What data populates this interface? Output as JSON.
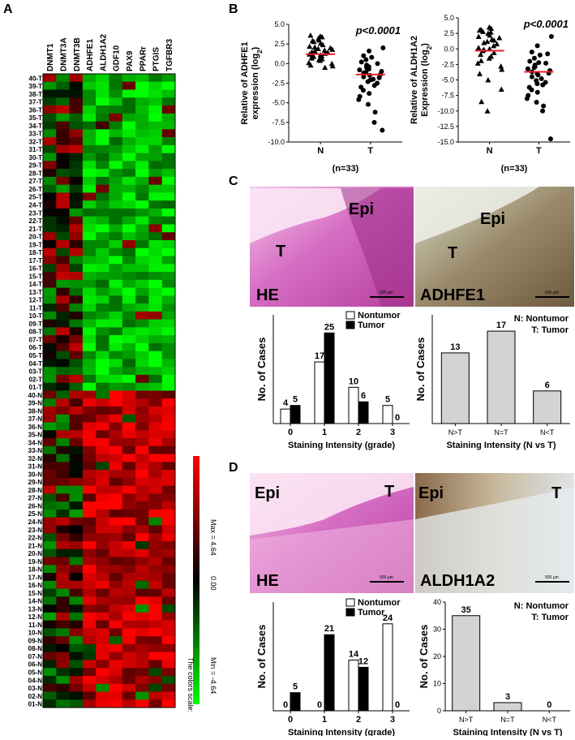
{
  "panels": {
    "A": "A",
    "B": "B",
    "C": "C",
    "D": "D"
  },
  "heatmap": {
    "columns": [
      "DNMT1",
      "DNMT3A",
      "DNMT3B",
      "ADHFE1",
      "ALDH1A2",
      "GDF10",
      "PAX9",
      "PPARr",
      "PTGIS",
      "TGFBR3"
    ],
    "rows": [
      "40-T",
      "39-T",
      "38-T",
      "37-T",
      "36-T",
      "35-T",
      "34-T",
      "33-T",
      "32-T",
      "31-T",
      "30-T",
      "29-T",
      "28-T",
      "27-T",
      "26-T",
      "25-T",
      "24-T",
      "23-T",
      "22-T",
      "21-T",
      "20-T",
      "19-T",
      "18-T",
      "17-T",
      "16-T",
      "15-T",
      "14-T",
      "13-T",
      "12-T",
      "11-T",
      "10-T",
      "09-T",
      "08-T",
      "07-T",
      "06-T",
      "05-T",
      "04-T",
      "03-T",
      "02-T",
      "01-T",
      "40-N",
      "39-N",
      "38-N",
      "37-N",
      "36-N",
      "35-N",
      "34-N",
      "33-N",
      "32-N",
      "31-N",
      "30-N",
      "29-N",
      "28-N",
      "27-N",
      "26-N",
      "25-N",
      "24-N",
      "23-N",
      "22-N",
      "21-N",
      "20-N",
      "19-N",
      "18-N",
      "17-N",
      "16-N",
      "15-N",
      "14-N",
      "13-N",
      "12-N",
      "11-N",
      "10-N",
      "09-N",
      "08-N",
      "07-N",
      "06-N",
      "05-N",
      "04-N",
      "03-N",
      "02-N",
      "01-N"
    ],
    "scale": {
      "max_label": "Max = 4.64",
      "mid_label": "0.00",
      "min_label": "Min = -4.64",
      "caption": "The colors scale:",
      "max": 4.64,
      "min": -4.64
    }
  },
  "colors": {
    "high": "#ff0000",
    "mid": "#000000",
    "low": "#00ff00",
    "median": "#e8202a",
    "bar_light": "#d3d3d3"
  },
  "chart_data": [
    {
      "id": "B-ADHFE1",
      "type": "scatter",
      "ylabel_line1": "Relative of ADHFE1",
      "ylabel_line2": "expression (log",
      "ylabel_sub": "2",
      "ylabel_end": ")",
      "categories": [
        "N",
        "T"
      ],
      "ylim": [
        -10.0,
        5.0
      ],
      "yticks": [
        "5.0",
        "2.5",
        "0.0",
        "-2.5",
        "-5.0",
        "-7.5",
        "-10.0"
      ],
      "pvalue": "p<0.0001",
      "n_label": "(n=33)",
      "median": {
        "N": 1.2,
        "T": -1.4
      },
      "N": [
        3.5,
        3.4,
        3.6,
        2.8,
        3.0,
        2.6,
        2.2,
        2.0,
        2.4,
        1.9,
        1.6,
        1.4,
        1.7,
        1.2,
        1.1,
        0.9,
        1.3,
        0.7,
        0.6,
        0.4,
        0.9,
        0.1,
        0.0,
        -0.3,
        -0.2,
        0.5,
        1.8,
        2.9,
        3.2,
        1.0,
        -0.5,
        2.1,
        1.5
      ],
      "T": [
        2.0,
        1.6,
        1.0,
        0.8,
        0.5,
        0.2,
        0.0,
        -0.2,
        -0.5,
        -0.8,
        -1.0,
        -1.2,
        -1.4,
        -1.5,
        -1.7,
        -2.0,
        -2.3,
        -2.5,
        -2.8,
        -3.0,
        -3.4,
        -3.8,
        -4.2,
        -4.6,
        -5.2,
        -6.2,
        -7.5,
        -8.5,
        -1.1,
        -0.4,
        -2.1,
        -0.7,
        -1.8
      ]
    },
    {
      "id": "B-ALDH1A2",
      "type": "scatter",
      "ylabel_line1": "Relative of ALDH1A2",
      "ylabel_line2": "Expression (log",
      "ylabel_sub": "2",
      "ylabel_end": ")",
      "categories": [
        "N",
        "T"
      ],
      "ylim": [
        -15.0,
        5.0
      ],
      "yticks": [
        "5.0",
        "2.5",
        "0.0",
        "-2.5",
        "-5.0",
        "-7.5",
        "-10.0",
        "-12.5",
        "-15.0"
      ],
      "pvalue": "p<0.0001",
      "n_label": "(n=33)",
      "median": {
        "N": -0.3,
        "T": -3.7
      },
      "N": [
        3.5,
        3.3,
        3.0,
        2.8,
        2.5,
        2.2,
        2.0,
        1.8,
        1.5,
        1.2,
        1.0,
        0.8,
        0.5,
        0.2,
        0.0,
        -0.3,
        -0.6,
        -0.9,
        -1.2,
        -1.5,
        -1.9,
        -2.3,
        -2.8,
        -3.3,
        -4.0,
        -5.0,
        -6.5,
        -8.5,
        -10.0,
        2.7,
        1.4,
        -0.1,
        3.1
      ],
      "T": [
        2.0,
        0.5,
        -0.5,
        -1.0,
        -1.5,
        -2.0,
        -2.3,
        -2.6,
        -2.9,
        -3.2,
        -3.5,
        -3.7,
        -3.9,
        -4.2,
        -4.5,
        -4.8,
        -5.1,
        -5.4,
        -5.8,
        -6.2,
        -6.6,
        -7.0,
        -7.5,
        -8.0,
        -8.6,
        -9.2,
        -10.0,
        -14.5,
        -3.0,
        -4.0,
        -2.2,
        -5.6,
        -0.8
      ]
    },
    {
      "id": "C-bar-grade",
      "type": "bar",
      "ylabel": "No. of Cases",
      "xlabel": "Staining Intensity (grade)",
      "categories": [
        "0",
        "1",
        "2",
        "3"
      ],
      "ylim": [
        0,
        30
      ],
      "series": [
        {
          "name": "Nontumor",
          "values": [
            4,
            17,
            10,
            5
          ]
        },
        {
          "name": "Tumor",
          "values": [
            5,
            25,
            6,
            0
          ]
        }
      ]
    },
    {
      "id": "C-bar-NvsT",
      "type": "bar",
      "ylabel": "No. of Cases",
      "xlabel": "Staining Intensity (N vs T)",
      "categories": [
        "N>T",
        "N=T",
        "N<T"
      ],
      "ylim": [
        0,
        20
      ],
      "values": [
        13,
        17,
        6
      ],
      "legend_lines": [
        "N: Nontumor",
        "T: Tumor"
      ]
    },
    {
      "id": "D-bar-grade",
      "type": "bar",
      "ylabel": "No. of Cases",
      "xlabel": "Staining Intensity (grade)",
      "categories": [
        "0",
        "1",
        "2",
        "3"
      ],
      "ylim": [
        0,
        30
      ],
      "series": [
        {
          "name": "Nontumor",
          "values": [
            0,
            0,
            14,
            24
          ]
        },
        {
          "name": "Tumor",
          "values": [
            5,
            21,
            12,
            0
          ]
        }
      ]
    },
    {
      "id": "D-bar-NvsT",
      "type": "bar",
      "ylabel": "No. of Cases",
      "xlabel": "Staining Intensity (N vs T)",
      "categories": [
        "N>T",
        "N=T",
        "N<T"
      ],
      "ylim": [
        0,
        40
      ],
      "yticks": [
        "0",
        "10",
        "20",
        "30",
        "40"
      ],
      "values": [
        35,
        3,
        0
      ],
      "legend_lines": [
        "N: Nontumor",
        "T: Tumor"
      ]
    }
  ],
  "photos": {
    "C_he": {
      "stain": "HE",
      "epi": "Epi",
      "t": "T",
      "scale": "500 µm"
    },
    "C_ihc": {
      "stain": "ADHFE1",
      "epi": "Epi",
      "t": "T",
      "scale": "500 µm"
    },
    "D_he": {
      "stain": "HE",
      "epi": "Epi",
      "t": "T",
      "scale": "500 µm"
    },
    "D_ihc": {
      "stain": "ALDH1A2",
      "epi": "Epi",
      "t": "T",
      "scale": "500 µm"
    }
  }
}
